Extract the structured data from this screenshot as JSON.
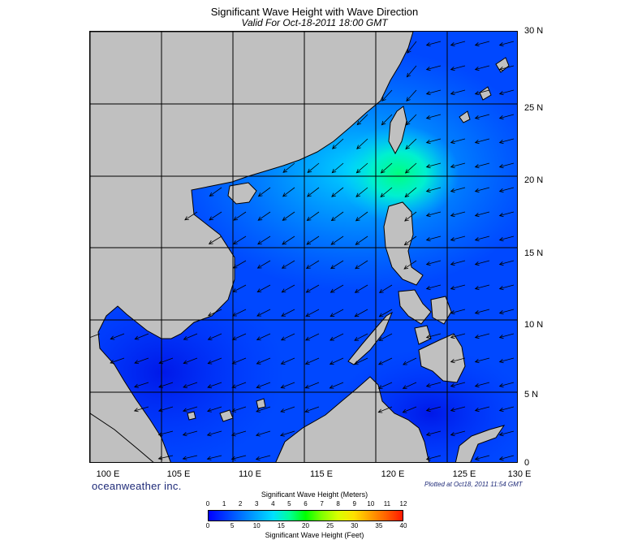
{
  "title": "Significant Wave Height with Wave Direction",
  "subtitle": "Valid For Oct-18-2011 18:00 GMT",
  "brand": "oceanweather inc.",
  "plotted": "Plotted at Oct18, 2011 11:54 GMT",
  "map": {
    "lon_range": [
      100,
      130
    ],
    "lat_range": [
      0,
      30
    ],
    "lat_labels": [
      "30 N",
      "25 N",
      "20 N",
      "15 N",
      "10 N",
      "5 N",
      "0"
    ],
    "lon_labels": [
      "100 E",
      "105 E",
      "110 E",
      "115 E",
      "120 E",
      "125 E",
      "130 E"
    ],
    "land_color": "#c0c0c0",
    "grid_on": true,
    "wave_arrow_direction": "toward southwest"
  },
  "colorbar": {
    "title_meters": "Significant Wave Height (Meters)",
    "title_feet": "Significant Wave Height (Feet)",
    "meters_ticks": [
      "0",
      "1",
      "2",
      "3",
      "4",
      "5",
      "6",
      "7",
      "8",
      "9",
      "10",
      "11",
      "12"
    ],
    "feet_ticks": [
      "0",
      "5",
      "10",
      "15",
      "20",
      "25",
      "30",
      "35",
      "40"
    ],
    "colors": [
      "#0000ff",
      "#0038ff",
      "#0070ff",
      "#00a8ff",
      "#00e0ff",
      "#00ff98",
      "#00ff00",
      "#80ff00",
      "#d8ff00",
      "#ffe000",
      "#ffa000",
      "#ff6000",
      "#ff1800"
    ]
  }
}
